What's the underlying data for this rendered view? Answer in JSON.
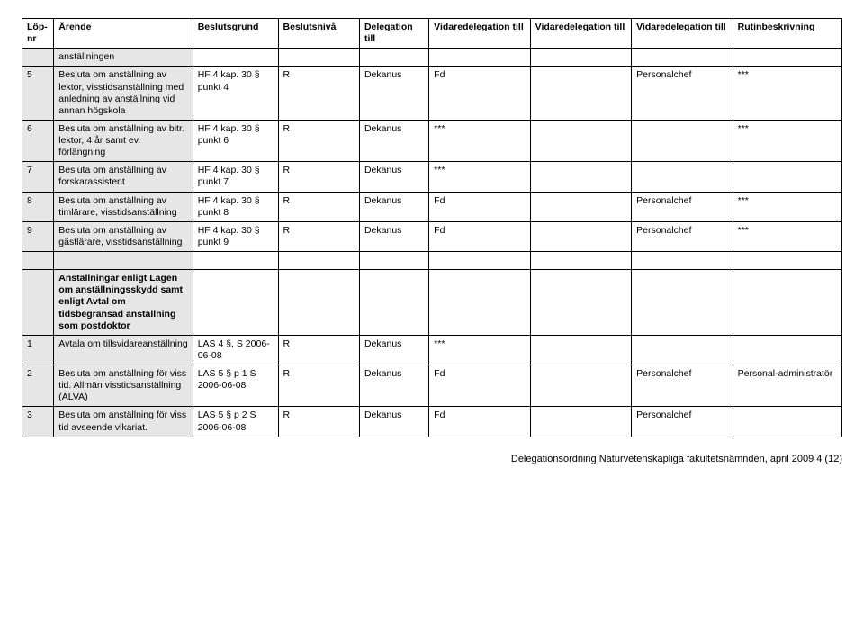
{
  "header": {
    "lopnr": "Löp-\nnr",
    "arende": "Ärende",
    "beslutsgrund": "Beslutsgrund",
    "beslutsniva": "Beslutsnivå",
    "delegation": "Delegation till",
    "vidare1": "Vidaredelegation till",
    "vidare2": "Vidaredelegation till",
    "vidare3": "Vidaredelegation till",
    "rutin": "Rutinbeskrivning"
  },
  "rows": [
    {
      "lop": "",
      "arende": "anställningen",
      "shade": true
    },
    {
      "lop": "5",
      "arende": "Besluta om anställning av lektor, visstidsanställning med anledning av anställning vid annan högskola",
      "grund": "HF 4 kap. 30 § punkt 4",
      "niva": "R",
      "del": "Dekanus",
      "v1": "Fd",
      "v2": "",
      "v3": "Personalchef",
      "rutin": "***",
      "shade": true
    },
    {
      "lop": "6",
      "arende": "Besluta om anställning av bitr. lektor, 4 år samt ev. förlängning",
      "grund": "HF 4 kap. 30 § punkt 6",
      "niva": "R",
      "del": "Dekanus",
      "v1": "***",
      "v2": "",
      "v3": "",
      "rutin": "***",
      "shade": true
    },
    {
      "lop": "7",
      "arende": "Besluta om anställning av forskarassistent",
      "grund": "HF 4 kap. 30 § punkt 7",
      "niva": "R",
      "del": "Dekanus",
      "v1": "***",
      "v2": "",
      "v3": "",
      "rutin": "",
      "shade": true
    },
    {
      "lop": "8",
      "arende": "Besluta om anställning av timlärare, visstidsanställning",
      "grund": "HF 4 kap. 30 § punkt 8",
      "niva": "R",
      "del": "Dekanus",
      "v1": "Fd",
      "v2": "",
      "v3": "Personalchef",
      "rutin": "***",
      "shade": true
    },
    {
      "lop": "9",
      "arende": "Besluta om anställning av gästlärare, visstidsanställning",
      "grund": "HF 4 kap. 30 § punkt 9",
      "niva": "R",
      "del": "Dekanus",
      "v1": "Fd",
      "v2": "",
      "v3": "Personalchef",
      "rutin": "***",
      "shade": true
    },
    {
      "lop": "",
      "arende": "",
      "shade": true,
      "spacer": true
    },
    {
      "lop": "",
      "arende": "Anställningar enligt Lagen om anställningsskydd samt enligt Avtal om tidsbegränsad anställning som postdoktor",
      "grund": "",
      "niva": "",
      "del": "",
      "v1": "",
      "v2": "",
      "v3": "",
      "rutin": "",
      "shade": true,
      "bold": true
    },
    {
      "lop": "1",
      "arende": "Avtala om tillsvidareanställning",
      "grund": "LAS 4 §, S 2006-06-08",
      "niva": "R",
      "del": "Dekanus",
      "v1": "***",
      "v2": "",
      "v3": "",
      "rutin": "",
      "shade": true
    },
    {
      "lop": "2",
      "arende": "Besluta om anställning för viss tid. Allmän visstidsanställning (ALVA)",
      "grund": "LAS 5 § p 1 S 2006-06-08",
      "niva": "R",
      "del": "Dekanus",
      "v1": "Fd",
      "v2": "",
      "v3": "Personalchef",
      "rutin": "Personal-administratör",
      "shade": true
    },
    {
      "lop": "3",
      "arende": "Besluta om anställning för viss tid avseende vikariat.",
      "grund": "LAS 5 § p 2 S 2006-06-08",
      "niva": "R",
      "del": "Dekanus",
      "v1": "Fd",
      "v2": "",
      "v3": "Personalchef",
      "rutin": "",
      "shade": true
    }
  ],
  "footer": "Delegationsordning Naturvetenskapliga fakultetsnämnden, april 2009    4 (12)"
}
